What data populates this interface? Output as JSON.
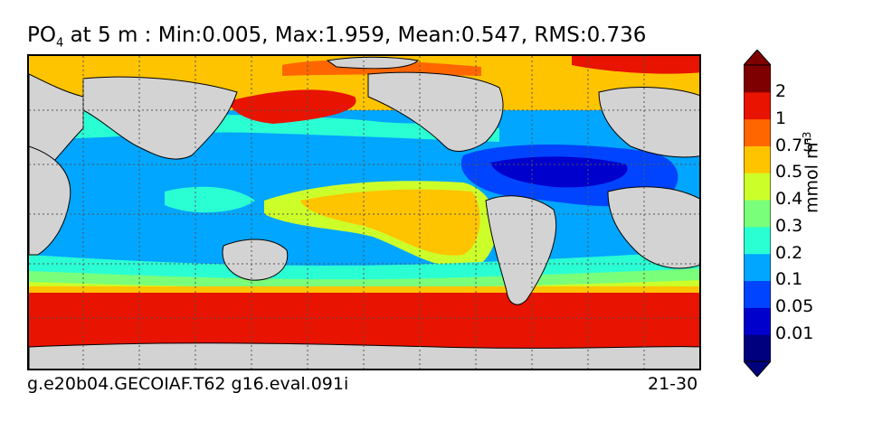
{
  "title": {
    "variable": "PO",
    "subscript": "4",
    "rest": " at 5 m : Min:0.005, Max:1.959, Mean:0.547, RMS:0.736"
  },
  "footer": {
    "case": "g.e20b04.GECOIAF.T62 g16.eval.091i",
    "years": "21-30"
  },
  "colorbar": {
    "labels": [
      "2",
      "1",
      "0.75",
      "0.5",
      "0.4",
      "0.3",
      "0.2",
      "0.1",
      "0.05",
      "0.01"
    ],
    "unit": "mmol m",
    "unit_exp": "-3",
    "colors": [
      "#00007f",
      "#0000cd",
      "#0044ff",
      "#00a6ff",
      "#2affd4",
      "#7aff7a",
      "#ccff2a",
      "#ffc400",
      "#ff6600",
      "#e81300",
      "#7f0000"
    ]
  },
  "map_colors": {
    "land": "#d3d3d3",
    "southern": "#e81300",
    "equatorial": "#ffc400",
    "subtropical": "#00a6ff",
    "atlantic": "#0000cd",
    "transition": "#2affd4",
    "green": "#7aff7a",
    "yellow_green": "#ccff2a",
    "orange": "#ff6600"
  }
}
